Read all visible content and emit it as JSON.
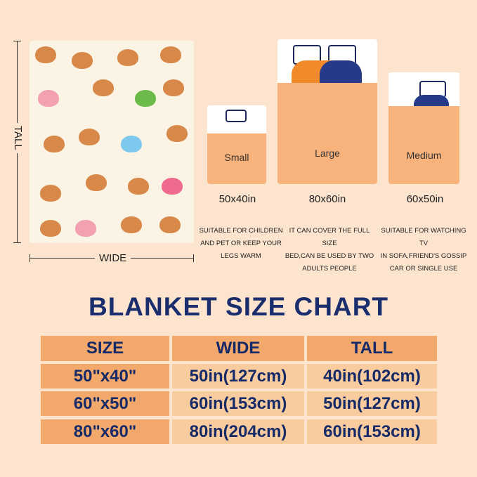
{
  "blanket_preview": {
    "tall_label": "TALL",
    "wide_label": "WIDE"
  },
  "sizes": [
    {
      "name": "Small",
      "dims": "50x40in",
      "desc": [
        "SUITABLE FOR CHILDREN",
        "AND PET OR KEEP YOUR",
        "LEGS WARM"
      ]
    },
    {
      "name": "Large",
      "dims": "80x60in",
      "desc": [
        "IT CAN COVER THE FULL SIZE",
        "BED,CAN BE USED BY TWO",
        "ADULTS PEOPLE"
      ]
    },
    {
      "name": "Medium",
      "dims": "60x50in",
      "desc": [
        "SUITABLE FOR WATCHING TV",
        "IN SOFA,FRIEND'S GOSSIP",
        "CAR OR SINGLE USE"
      ]
    }
  ],
  "chart": {
    "title": "BLANKET SIZE CHART",
    "headers": [
      "SIZE",
      "WIDE",
      "TALL"
    ],
    "rows": [
      [
        "50\"x40\"",
        "50in(127cm)",
        "40in(102cm)"
      ],
      [
        "60\"x50\"",
        "60in(153cm)",
        "50in(127cm)"
      ],
      [
        "80\"x60\"",
        "80in(204cm)",
        "60in(153cm)"
      ]
    ]
  },
  "colors": {
    "background": "#fde4cf",
    "header": "#f3a86c",
    "cell": "#f9cc9f",
    "text": "#1a2e6e"
  }
}
